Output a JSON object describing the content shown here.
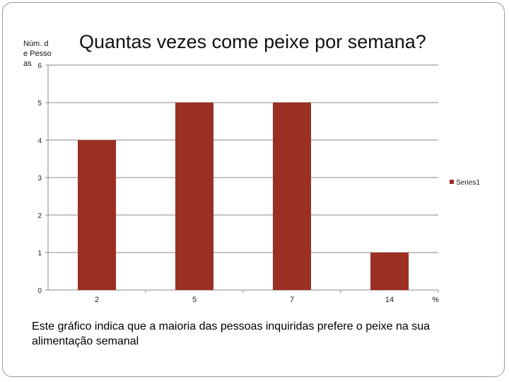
{
  "chart_data": {
    "type": "bar",
    "title": "Quantas vezes come peixe por semana?",
    "ylabel": "Núm. de Pessoas",
    "xlabel": "%",
    "categories": [
      "2",
      "5",
      "7",
      "14"
    ],
    "series": [
      {
        "name": "Series1",
        "values": [
          4,
          5,
          5,
          1
        ]
      }
    ],
    "ylim": [
      0,
      6
    ],
    "yticks": [
      0,
      1,
      2,
      3,
      4,
      5,
      6
    ],
    "grid": true,
    "legend": "right",
    "bar_color": "#9c2f24"
  },
  "caption": "Este gráfico indica que a maioria das pessoas inquiridas prefere o peixe na sua alimentação semanal"
}
